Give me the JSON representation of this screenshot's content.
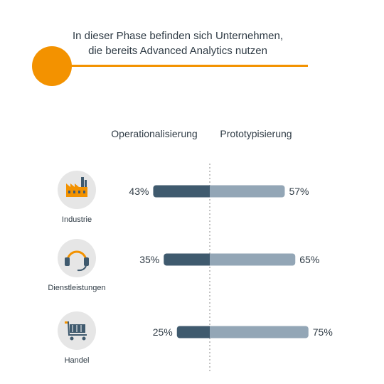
{
  "title": {
    "line1": "In dieser Phase befinden sich Unternehmen,",
    "line2": "die bereits Advanced Analytics nutzen"
  },
  "colors": {
    "accent": "#f39200",
    "left_bar": "#3f5a6e",
    "right_bar": "#93a6b6",
    "icon_circle": "#e6e6e6",
    "icon_dark": "#3f5a6e",
    "divider": "#8a8a8a"
  },
  "chart_data": {
    "type": "bar",
    "orientation": "horizontal-diverging",
    "categories": [
      "Industrie",
      "Dienstleistungen",
      "Handel"
    ],
    "category_icons": [
      "factory-icon",
      "headset-icon",
      "shopping-cart-icon"
    ],
    "series": [
      {
        "name": "Operationalisierung",
        "values": [
          43,
          35,
          25
        ],
        "labels": [
          "43%",
          "35%",
          "25%"
        ]
      },
      {
        "name": "Prototypisierung",
        "values": [
          57,
          65,
          75
        ],
        "labels": [
          "57%",
          "65%",
          "75%"
        ]
      }
    ],
    "unit": "%"
  }
}
